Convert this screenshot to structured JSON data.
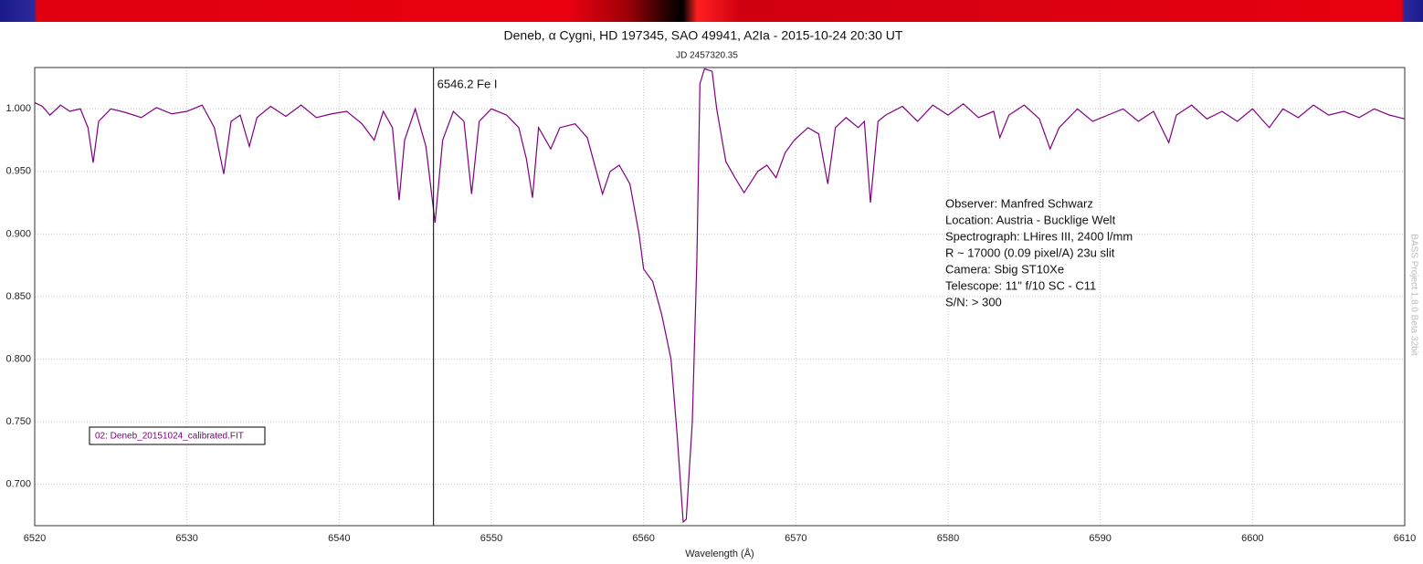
{
  "chart_data": {
    "type": "line",
    "title": "Deneb, α Cygni, HD 197345, SAO 49941, A2Ia - 2015-10-24 20:30 UT",
    "subtitle": "JD 2457320.35",
    "x_label": "Wavelength (Å)",
    "watermark": "BASS Project 1.8.0 Beta 32bit",
    "xlim": [
      6520,
      6610
    ],
    "xticks": [
      6520,
      6530,
      6540,
      6550,
      6560,
      6570,
      6580,
      6590,
      6600,
      6610
    ],
    "ylim": [
      0.667,
      1.033
    ],
    "yticks": [
      {
        "value": 0.7,
        "label": "0.700"
      },
      {
        "value": 0.75,
        "label": "0.750"
      },
      {
        "value": 0.8,
        "label": "0.800"
      },
      {
        "value": 0.85,
        "label": "0.850"
      },
      {
        "value": 0.9,
        "label": "0.900"
      },
      {
        "value": 0.95,
        "label": "0.950"
      },
      {
        "value": 1.0,
        "label": "1.000"
      }
    ],
    "grid": true,
    "x": [
      6520,
      6520.5,
      6521,
      6521.7,
      6522.3,
      6523,
      6523.5,
      6523.84,
      6524.2,
      6525,
      6526,
      6527,
      6528,
      6529,
      6530,
      6531,
      6531.8,
      6532.42,
      6532.9,
      6533.5,
      6534.1,
      6534.6,
      6535.5,
      6536.5,
      6537.5,
      6538.5,
      6539.5,
      6540.5,
      6541.5,
      6542.3,
      6542.9,
      6543.5,
      6543.94,
      6544.3,
      6545,
      6545.7,
      6546.3,
      6546.8,
      6547.5,
      6548.2,
      6548.7,
      6549.2,
      6550,
      6551,
      6551.8,
      6552.3,
      6552.7,
      6553.1,
      6553.9,
      6554.5,
      6555.5,
      6556.3,
      6557.3,
      6557.8,
      6558.4,
      6559.1,
      6559.7,
      6560,
      6560.6,
      6561.2,
      6561.8,
      6562.2,
      6562.6,
      6562.8,
      6563.2,
      6563.5,
      6563.7,
      6564,
      6564.5,
      6564.8,
      6565.4,
      6566,
      6566.6,
      6567.5,
      6568.1,
      6568.7,
      6569.3,
      6569.9,
      6570.8,
      6571.5,
      6572.1,
      6572.6,
      6573.3,
      6574.1,
      6574.5,
      6574.9,
      6575.4,
      6575.9,
      6577,
      6578,
      6579,
      6580,
      6581,
      6582,
      6583,
      6583.4,
      6584,
      6585,
      6586,
      6586.7,
      6587.3,
      6588.5,
      6589.5,
      6590.5,
      6591.5,
      6592.5,
      6593.5,
      6594.5,
      6595,
      6596,
      6597,
      6598,
      6599,
      6600,
      6601.1,
      6602,
      6603,
      6604,
      6605,
      6606,
      6607,
      6608,
      6609,
      6610
    ],
    "series": [
      {
        "name": "02: Deneb_20151024_calibrated.FIT",
        "color": "#800080",
        "values": [
          1.005,
          1.002,
          0.995,
          1.003,
          0.998,
          1.0,
          0.985,
          0.957,
          0.99,
          1.0,
          0.997,
          0.993,
          1.001,
          0.996,
          0.998,
          1.003,
          0.985,
          0.948,
          0.99,
          0.995,
          0.97,
          0.993,
          1.002,
          0.994,
          1.003,
          0.993,
          0.996,
          0.998,
          0.988,
          0.975,
          0.998,
          0.985,
          0.927,
          0.975,
          1.0,
          0.97,
          0.909,
          0.975,
          0.998,
          0.99,
          0.932,
          0.99,
          1.0,
          0.995,
          0.985,
          0.96,
          0.929,
          0.985,
          0.968,
          0.985,
          0.988,
          0.977,
          0.932,
          0.95,
          0.955,
          0.94,
          0.9,
          0.872,
          0.862,
          0.835,
          0.8,
          0.74,
          0.67,
          0.672,
          0.75,
          0.88,
          1.02,
          1.032,
          1.03,
          1.0,
          0.958,
          0.945,
          0.933,
          0.95,
          0.955,
          0.945,
          0.965,
          0.975,
          0.985,
          0.98,
          0.94,
          0.985,
          0.993,
          0.985,
          0.99,
          0.925,
          0.99,
          0.995,
          1.002,
          0.99,
          1.003,
          0.995,
          1.004,
          0.993,
          0.998,
          0.977,
          0.995,
          1.003,
          0.992,
          0.968,
          0.985,
          1.0,
          0.99,
          0.995,
          1.0,
          0.99,
          0.998,
          0.973,
          0.995,
          1.003,
          0.992,
          0.998,
          0.99,
          1.0,
          0.985,
          1.0,
          0.993,
          1.003,
          0.995,
          0.998,
          0.993,
          1.0,
          0.995,
          0.992
        ]
      }
    ],
    "annotations": [
      {
        "x": 6546.2,
        "label": "6546.2 Fe I"
      }
    ],
    "info": [
      "Observer: Manfred Schwarz",
      "Location: Austria - Bucklige Welt",
      "Spectrograph: LHires III, 2400 l/mm",
      "R ~ 17000 (0.09 pixel/A) 23u slit",
      "Camera: Sbig ST10Xe",
      "Telescope: 11\" f/10 SC - C11",
      "S/N:  > 300"
    ]
  }
}
